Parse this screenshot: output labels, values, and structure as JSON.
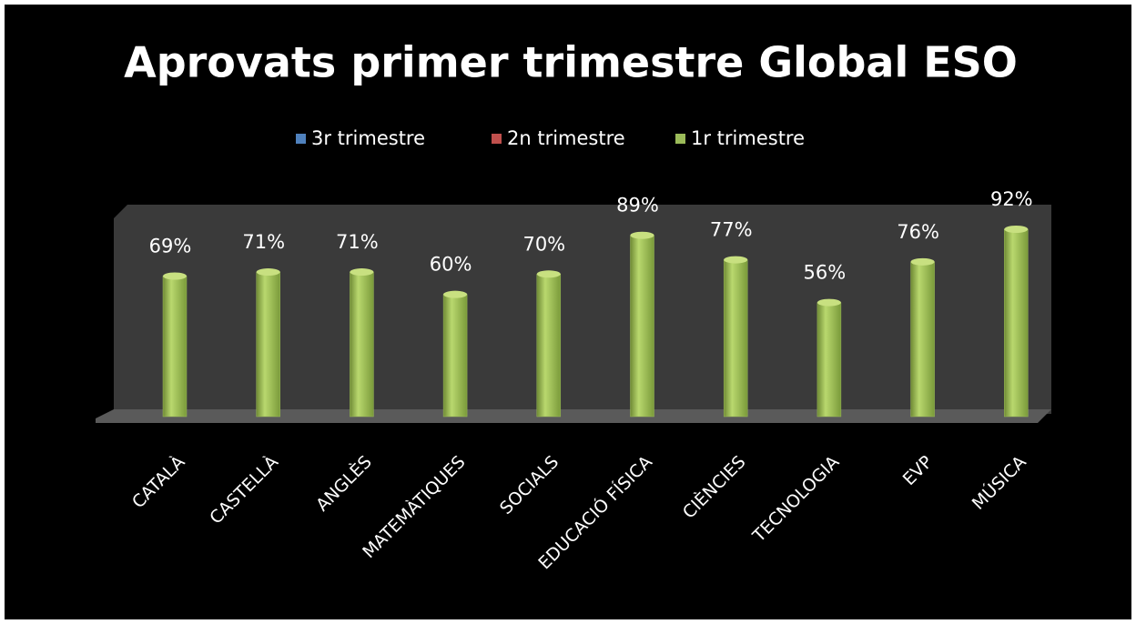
{
  "chart_data": {
    "type": "bar3d",
    "title": "Aprovats primer trimestre Global ESO",
    "categories": [
      "CATALÀ",
      "CASTELLÀ",
      "ANGLÈS",
      "MATEMÀTIQUES",
      "SOCIALS",
      "EDUCACIÓ FÍSICA",
      "CIÈNCIES",
      "TECNOLOGIA",
      "EVP",
      "MÚSICA"
    ],
    "series": [
      {
        "name": "3r trimestre",
        "color": "#4f81bd",
        "values": [
          null,
          null,
          null,
          null,
          null,
          null,
          null,
          null,
          null,
          null
        ]
      },
      {
        "name": "2n trimestre",
        "color": "#c0504d",
        "values": [
          null,
          null,
          null,
          null,
          null,
          null,
          null,
          null,
          null,
          null
        ]
      },
      {
        "name": "1r trimestre",
        "color": "#9bbb59",
        "values": [
          69,
          71,
          71,
          60,
          70,
          89,
          77,
          56,
          76,
          92
        ],
        "value_labels": [
          "69%",
          "71%",
          "71%",
          "60%",
          "70%",
          "89%",
          "77%",
          "56%",
          "76%",
          "92%"
        ]
      }
    ]
  }
}
